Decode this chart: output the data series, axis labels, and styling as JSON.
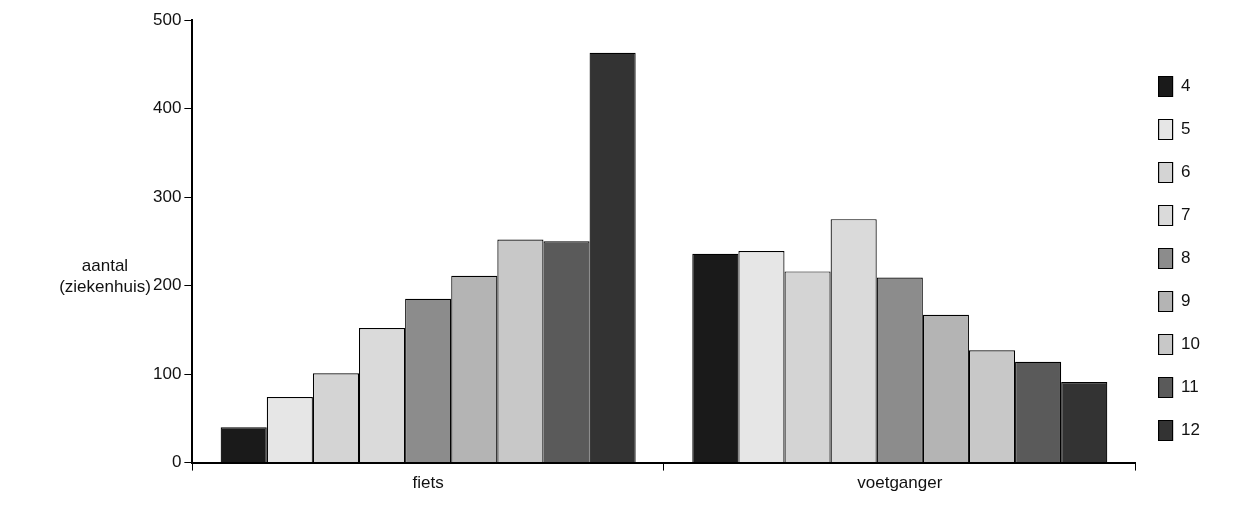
{
  "chart_data": {
    "type": "bar",
    "ylabel": "aantal (ziekenhuis)",
    "categories": [
      "fiets",
      "voetganger"
    ],
    "series": [
      {
        "name": "4",
        "color": "#1a1a1a",
        "values": [
          40,
          236
        ]
      },
      {
        "name": "5",
        "color": "#e6e6e6",
        "values": [
          74,
          239
        ]
      },
      {
        "name": "6",
        "color": "#d4d4d4",
        "values": [
          101,
          216
        ]
      },
      {
        "name": "7",
        "color": "#dadada",
        "values": [
          152,
          275
        ]
      },
      {
        "name": "8",
        "color": "#8c8c8c",
        "values": [
          185,
          209
        ]
      },
      {
        "name": "9",
        "color": "#b4b4b4",
        "values": [
          211,
          167
        ]
      },
      {
        "name": "10",
        "color": "#c8c8c8",
        "values": [
          252,
          127
        ]
      },
      {
        "name": "11",
        "color": "#5a5a5a",
        "values": [
          250,
          114
        ]
      },
      {
        "name": "12",
        "color": "#333333",
        "values": [
          463,
          91
        ]
      }
    ],
    "ylim": [
      0,
      500
    ],
    "yticks": [
      0,
      100,
      200,
      300,
      400,
      500
    ],
    "grid": false,
    "legend": "right"
  }
}
